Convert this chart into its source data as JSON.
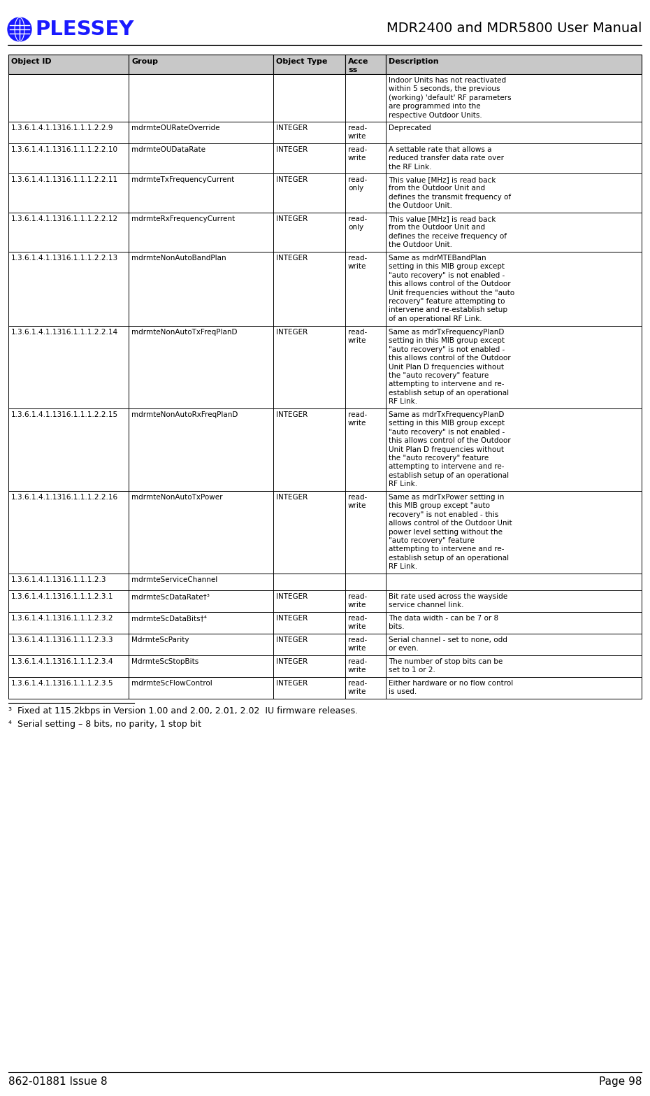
{
  "title": "MDR2400 and MDR5800 User Manual",
  "col_headers": [
    "Object ID",
    "Group",
    "Object Type",
    "Acce\nss",
    "Description"
  ],
  "rows": [
    {
      "oid": "",
      "group": "",
      "type": "",
      "access": "",
      "desc": "Indoor Units has not reactivated\nwithin 5 seconds, the previous\n(working) 'default' RF parameters\nare programmed into the\nrespective Outdoor Units."
    },
    {
      "oid": "1.3.6.1.4.1.1316.1.1.1.2.2.9",
      "group": "mdrmteOURateOverride",
      "type": "INTEGER",
      "access": "read-\nwrite",
      "desc": "Deprecated"
    },
    {
      "oid": "1.3.6.1.4.1.1316.1.1.1.2.2.10",
      "group": "mdrmteOUDataRate",
      "type": "INTEGER",
      "access": "read-\nwrite",
      "desc": "A settable rate that allows a\nreduced transfer data rate over\nthe RF Link."
    },
    {
      "oid": "1.3.6.1.4.1.1316.1.1.1.2.2.11",
      "group": "mdrmteTxFrequencyCurrent",
      "type": "INTEGER",
      "access": "read-\nonly",
      "desc": "This value [MHz] is read back\nfrom the Outdoor Unit and\ndefines the transmit frequency of\nthe Outdoor Unit."
    },
    {
      "oid": "1.3.6.1.4.1.1316.1.1.1.2.2.12",
      "group": "mdrmteRxFrequencyCurrent",
      "type": "INTEGER",
      "access": "read-\nonly",
      "desc": "This value [MHz] is read back\nfrom the Outdoor Unit and\ndefines the receive frequency of\nthe Outdoor Unit."
    },
    {
      "oid": "1.3.6.1.4.1.1316.1.1.1.2.2.13",
      "group": "mdrmteNonAutoBandPlan",
      "type": "INTEGER",
      "access": "read-\nwrite",
      "desc": "Same as mdrMTEBandPlan\nsetting in this MIB group except\n\"auto recovery\" is not enabled -\nthis allows control of the Outdoor\nUnit frequencies without the \"auto\nrecovery\" feature attempting to\nintervene and re-establish setup\nof an operational RF Link."
    },
    {
      "oid": "1.3.6.1.4.1.1316.1.1.1.2.2.14",
      "group": "mdrmteNonAutoTxFreqPlanD",
      "type": "INTEGER",
      "access": "read-\nwrite",
      "desc": "Same as mdrTxFrequencyPlanD\nsetting in this MIB group except\n\"auto recovery\" is not enabled -\nthis allows control of the Outdoor\nUnit Plan D frequencies without\nthe \"auto recovery\" feature\nattempting to intervene and re-\nestablish setup of an operational\nRF Link."
    },
    {
      "oid": "1.3.6.1.4.1.1316.1.1.1.2.2.15",
      "group": "mdrmteNonAutoRxFreqPlanD",
      "type": "INTEGER",
      "access": "read-\nwrite",
      "desc": "Same as mdrTxFrequencyPlanD\nsetting in this MIB group except\n\"auto recovery\" is not enabled -\nthis allows control of the Outdoor\nUnit Plan D frequencies without\nthe \"auto recovery\" feature\nattempting to intervene and re-\nestablish setup of an operational\nRF Link."
    },
    {
      "oid": "1.3.6.1.4.1.1316.1.1.1.2.2.16",
      "group": "mdrmteNonAutoTxPower",
      "type": "INTEGER",
      "access": "read-\nwrite",
      "desc": "Same as mdrTxPower setting in\nthis MIB group except \"auto\nrecovery\" is not enabled - this\nallows control of the Outdoor Unit\npower level setting without the\n\"auto recovery\" feature\nattempting to intervene and re-\nestablish setup of an operational\nRF Link."
    },
    {
      "oid": "1.3.6.1.4.1.1316.1.1.1.2.3",
      "group": "mdrmteServiceChannel",
      "type": "",
      "access": "",
      "desc": ""
    },
    {
      "oid": "1.3.6.1.4.1.1316.1.1.1.2.3.1",
      "group": "mdrmteScDataRate†³",
      "type": "INTEGER",
      "access": "read-\nwrite",
      "desc": "Bit rate used across the wayside\nservice channel link."
    },
    {
      "oid": "1.3.6.1.4.1.1316.1.1.1.2.3.2",
      "group": "mdrmteScDataBits†⁴",
      "type": "INTEGER",
      "access": "read-\nwrite",
      "desc": "The data width - can be 7 or 8\nbits."
    },
    {
      "oid": "1.3.6.1.4.1.1316.1.1.1.2.3.3",
      "group": "MdrmteScParity",
      "type": "INTEGER",
      "access": "read-\nwrite",
      "desc": "Serial channel - set to none, odd\nor even."
    },
    {
      "oid": "1.3.6.1.4.1.1316.1.1.1.2.3.4",
      "group": "MdrmteScStopBits",
      "type": "INTEGER",
      "access": "read-\nwrite",
      "desc": "The number of stop bits can be\nset to 1 or 2."
    },
    {
      "oid": "1.3.6.1.4.1.1316.1.1.1.2.3.5",
      "group": "mdrmteScFlowControl",
      "type": "INTEGER",
      "access": "read-\nwrite",
      "desc": "Either hardware or no flow control\nis used."
    }
  ],
  "footnote1": "³  Fixed at 115.2kbps in Version 1.00 and 2.00, 2.01, 2.02  IU firmware releases.",
  "footnote2": "⁴  Serial setting – 8 bits, no parity, 1 stop bit",
  "footer_left": "862-01881 Issue 8",
  "footer_right": "Page 98",
  "header_bg": "#c8c8c8",
  "border_color": "#000000"
}
